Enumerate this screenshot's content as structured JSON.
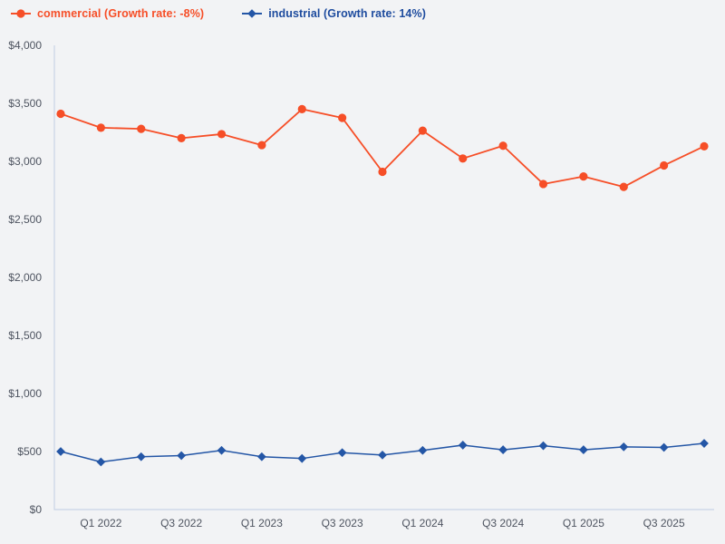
{
  "page": {
    "background": "#f2f3f5",
    "axis_color": "#c9d3e6",
    "tick_label_color": "#4e5460"
  },
  "legend": {
    "position": "top-left",
    "items": [
      {
        "marker": "circle",
        "text_color": "#f64e27"
      },
      {
        "marker": "diamond",
        "text_color": "#1d4b9e"
      }
    ]
  },
  "chart_data": {
    "type": "line",
    "title": "",
    "xlabel": "",
    "ylabel": "",
    "x": [
      "Q4 2021",
      "Q1 2022",
      "Q2 2022",
      "Q3 2022",
      "Q4 2022",
      "Q1 2023",
      "Q2 2023",
      "Q3 2023",
      "Q4 2023",
      "Q1 2024",
      "Q2 2024",
      "Q3 2024",
      "Q4 2024",
      "Q1 2025",
      "Q2 2025",
      "Q3 2025",
      "Q4 2025"
    ],
    "x_tick_labels": [
      "Q1 2022",
      "Q3 2022",
      "Q1 2023",
      "Q3 2023",
      "Q1 2024",
      "Q3 2024",
      "Q1 2025",
      "Q3 2025"
    ],
    "ylim": [
      0,
      4000
    ],
    "y_tick_labels": [
      "$0",
      "$500",
      "$1,000",
      "$1,500",
      "$2,000",
      "$2,500",
      "$3,000",
      "$3,500",
      "$4,000"
    ],
    "grid": false,
    "legend_position": "top-left",
    "series": [
      {
        "name": "commercial (Growth rate: -8%)",
        "marker": "circle",
        "color": "#f64e27",
        "values": [
          3410,
          3290,
          3280,
          3200,
          3235,
          3140,
          3450,
          3375,
          2910,
          3265,
          3025,
          3135,
          2805,
          2870,
          2780,
          2965,
          3130
        ]
      },
      {
        "name": "industrial (Growth rate: 14%)",
        "marker": "diamond",
        "color": "#2456a6",
        "values": [
          500,
          410,
          455,
          465,
          510,
          455,
          440,
          490,
          470,
          510,
          555,
          515,
          550,
          515,
          540,
          535,
          570
        ]
      }
    ]
  }
}
